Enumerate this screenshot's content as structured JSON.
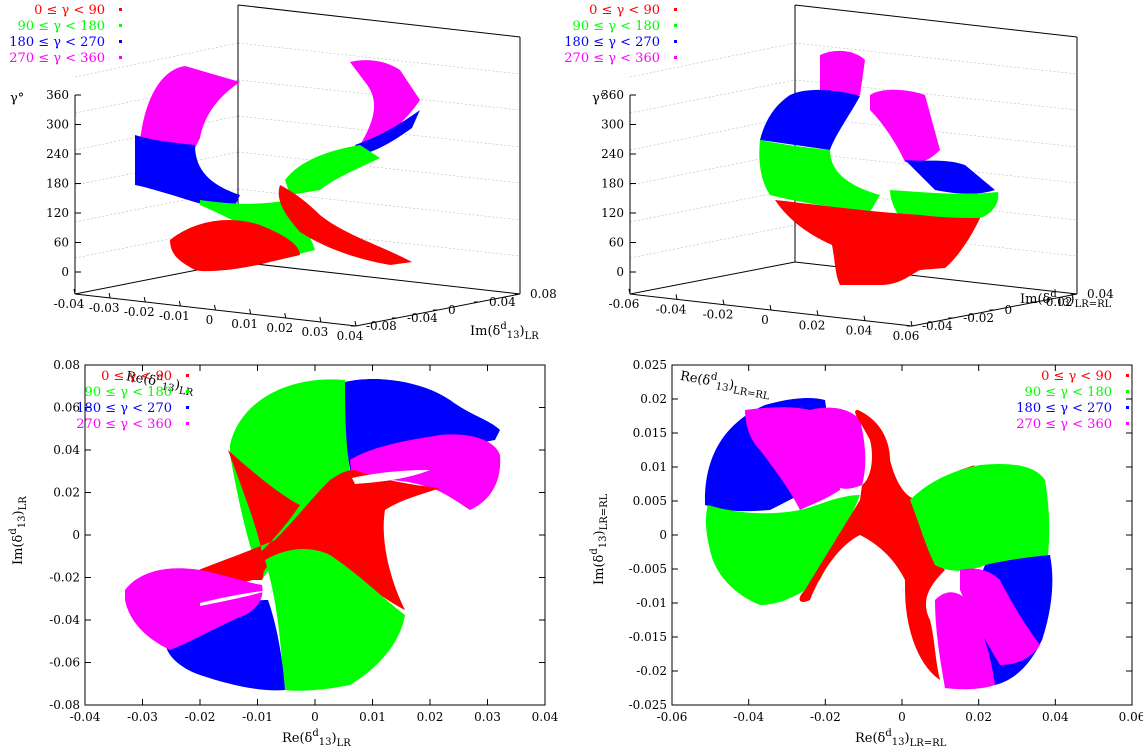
{
  "legend": [
    {
      "label": "0 ≤ γ < 90",
      "color": "#ff0000"
    },
    {
      "label": "90 ≤ γ < 180",
      "color": "#00ff00"
    },
    {
      "label": "180 ≤ γ < 270",
      "color": "#0000ff"
    },
    {
      "label": "270 ≤ γ < 360",
      "color": "#ff00ff"
    }
  ],
  "chart_data": [
    {
      "type": "scatter",
      "panel": "3d",
      "title": "",
      "xlabel": "Re(δ^d_13)_LR",
      "ylabel": "Im(δ^d_13)_LR",
      "zlabel": "γ°",
      "xticks": [
        "-0.04",
        "-0.03",
        "-0.02",
        "-0.01",
        "0",
        "0.01",
        "0.02",
        "0.03",
        "0.04"
      ],
      "yticks": [
        "-0.08",
        "-0.04",
        "0",
        "0.04",
        "0.08"
      ],
      "zticks": [
        "0",
        "60",
        "120",
        "180",
        "240",
        "300",
        "360"
      ],
      "xlim": [
        -0.04,
        0.04
      ],
      "ylim": [
        -0.08,
        0.08
      ],
      "zlim": [
        0,
        360
      ],
      "legend_position": "top-left",
      "series": [
        {
          "name": "0 ≤ γ < 90",
          "color": "#ff0000"
        },
        {
          "name": "90 ≤ γ < 180",
          "color": "#00ff00"
        },
        {
          "name": "180 ≤ γ < 270",
          "color": "#0000ff"
        },
        {
          "name": "270 ≤ γ < 360",
          "color": "#ff00ff"
        }
      ]
    },
    {
      "type": "scatter",
      "panel": "3d",
      "title": "",
      "xlabel": "Re(δ^d_13)_LR=RL",
      "ylabel": "Im(δ^d_13)_LR=RL",
      "zlabel": "γ°",
      "xticks": [
        "-0.06",
        "-0.04",
        "-0.02",
        "0",
        "0.02",
        "0.04",
        "0.06"
      ],
      "yticks": [
        "-0.04",
        "-0.02",
        "0",
        "0.02",
        "0.04"
      ],
      "zticks": [
        "0",
        "60",
        "120",
        "180",
        "240",
        "300",
        "360"
      ],
      "xlim": [
        -0.06,
        0.06
      ],
      "ylim": [
        -0.04,
        0.04
      ],
      "zlim": [
        0,
        360
      ],
      "legend_position": "top-left",
      "series": [
        {
          "name": "0 ≤ γ < 90",
          "color": "#ff0000"
        },
        {
          "name": "90 ≤ γ < 180",
          "color": "#00ff00"
        },
        {
          "name": "180 ≤ γ < 270",
          "color": "#0000ff"
        },
        {
          "name": "270 ≤ γ < 360",
          "color": "#ff00ff"
        }
      ]
    },
    {
      "type": "scatter",
      "panel": "2d",
      "title": "",
      "xlabel": "Re(δ^d_13)_LR",
      "ylabel": "Im(δ^d_13)_LR",
      "xticks": [
        "-0.04",
        "-0.03",
        "-0.02",
        "-0.01",
        "0",
        "0.01",
        "0.02",
        "0.03",
        "0.04"
      ],
      "yticks": [
        "-0.08",
        "-0.06",
        "-0.04",
        "-0.02",
        "0",
        "0.02",
        "0.04",
        "0.06",
        "0.08"
      ],
      "xlim": [
        -0.04,
        0.04
      ],
      "ylim": [
        -0.08,
        0.08
      ],
      "legend_position": "top-left",
      "series": [
        {
          "name": "0 ≤ γ < 90",
          "color": "#ff0000"
        },
        {
          "name": "90 ≤ γ < 180",
          "color": "#00ff00"
        },
        {
          "name": "180 ≤ γ < 270",
          "color": "#0000ff"
        },
        {
          "name": "270 ≤ γ < 360",
          "color": "#ff00ff"
        }
      ]
    },
    {
      "type": "scatter",
      "panel": "2d",
      "title": "",
      "xlabel": "Re(δ^d_13)_LR=RL",
      "ylabel": "Im(δ^d_13)_LR=RL",
      "xticks": [
        "-0.06",
        "-0.04",
        "-0.02",
        "0",
        "0.02",
        "0.04",
        "0.06"
      ],
      "yticks": [
        "-0.025",
        "-0.02",
        "-0.015",
        "-0.01",
        "-0.005",
        "0",
        "0.005",
        "0.01",
        "0.015",
        "0.02",
        "0.025"
      ],
      "xlim": [
        -0.06,
        0.06
      ],
      "ylim": [
        -0.025,
        0.025
      ],
      "legend_position": "top-right",
      "series": [
        {
          "name": "0 ≤ γ < 90",
          "color": "#ff0000"
        },
        {
          "name": "90 ≤ γ < 180",
          "color": "#00ff00"
        },
        {
          "name": "180 ≤ γ < 270",
          "color": "#0000ff"
        },
        {
          "name": "270 ≤ γ < 360",
          "color": "#ff00ff"
        }
      ]
    }
  ]
}
